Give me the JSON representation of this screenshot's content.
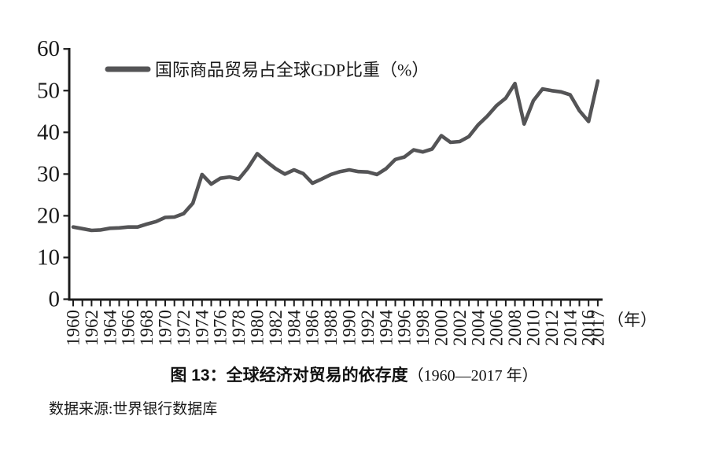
{
  "figure": {
    "title_prefix": "图 13：",
    "title_main": "全球经济对贸易的依存度",
    "title_range": "（1960—2017 年）",
    "source": "数据来源:世界银行数据库"
  },
  "chart_data": {
    "type": "line",
    "title": "图 13：全球经济对贸易的依存度（1960—2017 年）",
    "legend": [
      {
        "label": "国际商品贸易占全球GDP比重（%）",
        "color": "#545456"
      }
    ],
    "legend_position": "top-left-inside",
    "xlabel": "（年）",
    "ylabel": "",
    "ylim": [
      0,
      60
    ],
    "yticks": [
      0,
      10,
      20,
      30,
      40,
      50,
      60
    ],
    "xtick_labels": [
      "1960",
      "1962",
      "1964",
      "1966",
      "1968",
      "1970",
      "1972",
      "1974",
      "1976",
      "1978",
      "1980",
      "1982",
      "1984",
      "1986",
      "1988",
      "1990",
      "1992",
      "1994",
      "1996",
      "1998",
      "2000",
      "2002",
      "2004",
      "2006",
      "2008",
      "2010",
      "2012",
      "2014",
      "2016",
      "2017"
    ],
    "grid": false,
    "axis_color": "#1c1c1c",
    "line_color": "#545456",
    "source_note": "数据来源:世界银行数据库",
    "series": [
      {
        "name": "国际商品贸易占全球GDP比重（%）",
        "x": [
          1960,
          1961,
          1962,
          1963,
          1964,
          1965,
          1966,
          1967,
          1968,
          1969,
          1970,
          1971,
          1972,
          1973,
          1974,
          1975,
          1976,
          1977,
          1978,
          1979,
          1980,
          1981,
          1982,
          1983,
          1984,
          1985,
          1986,
          1987,
          1988,
          1989,
          1990,
          1991,
          1992,
          1993,
          1994,
          1995,
          1996,
          1997,
          1998,
          1999,
          2000,
          2001,
          2002,
          2003,
          2004,
          2005,
          2006,
          2007,
          2008,
          2009,
          2010,
          2011,
          2012,
          2013,
          2014,
          2015,
          2016,
          2017
        ],
        "values": [
          17.3,
          16.9,
          16.5,
          16.6,
          17.0,
          17.1,
          17.3,
          17.3,
          18.0,
          18.6,
          19.6,
          19.7,
          20.5,
          23.0,
          29.9,
          27.6,
          29.0,
          29.3,
          28.8,
          31.5,
          34.9,
          33.0,
          31.3,
          30.0,
          31.0,
          30.1,
          27.8,
          28.8,
          29.9,
          30.6,
          31.0,
          30.6,
          30.5,
          29.9,
          31.3,
          33.5,
          34.1,
          35.8,
          35.3,
          36.0,
          39.2,
          37.6,
          37.8,
          39.0,
          41.8,
          43.9,
          46.4,
          48.2,
          51.7,
          42.0,
          47.6,
          50.4,
          50.0,
          49.7,
          49.0,
          45.2,
          42.6,
          52.3
        ]
      }
    ]
  }
}
